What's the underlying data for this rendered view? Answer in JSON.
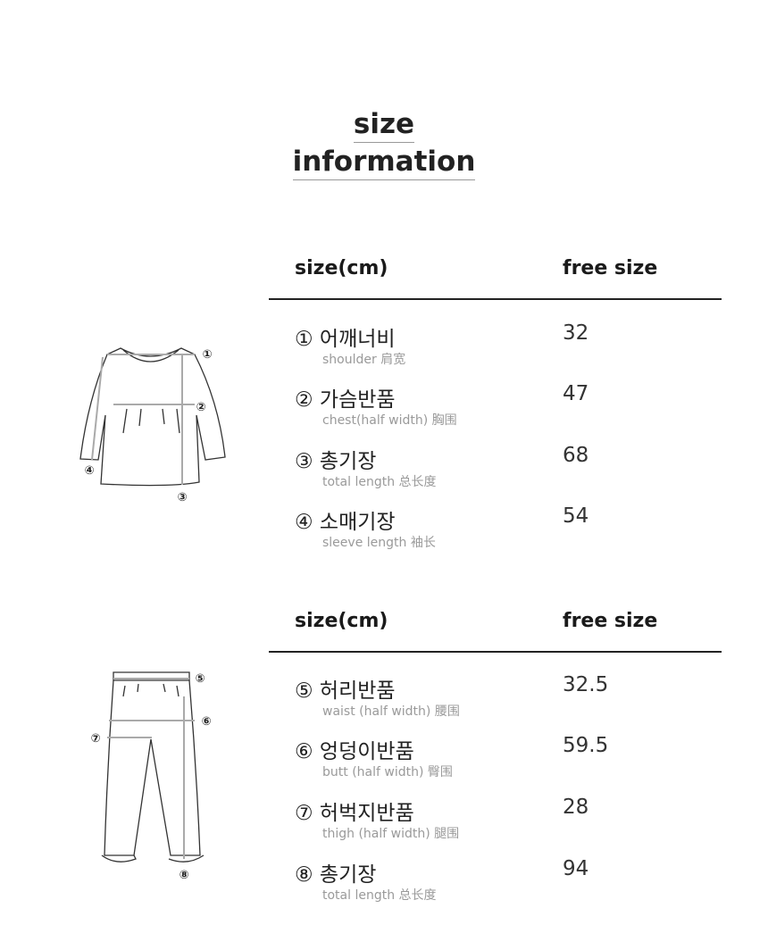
{
  "title": {
    "line1": "size",
    "line2": "information"
  },
  "tables": [
    {
      "header_label": "size(cm)",
      "header_size": "free size",
      "rows": [
        {
          "name": "① 어깨너비",
          "sub": "shoulder 肩宽",
          "value": "32"
        },
        {
          "name": "② 가슴반품",
          "sub": "chest(half width) 胸围",
          "value": "47"
        },
        {
          "name": "③ 총기장",
          "sub": "total length 总长度",
          "value": "68"
        },
        {
          "name": "④ 소매기장",
          "sub": "sleeve length 袖长",
          "value": "54"
        }
      ]
    },
    {
      "header_label": "size(cm)",
      "header_size": "free size",
      "rows": [
        {
          "name": "⑤ 허리반품",
          "sub": "waist (half width) 腰围",
          "value": "32.5"
        },
        {
          "name": "⑥ 엉덩이반품",
          "sub": "butt (half width) 臀围",
          "value": "59.5"
        },
        {
          "name": "⑦ 허벅지반품",
          "sub": "thigh (half width) 腿围",
          "value": "28"
        },
        {
          "name": "⑧ 총기장",
          "sub": "total length 总长度",
          "value": "94"
        }
      ]
    }
  ],
  "figures": {
    "top_markers": [
      "①",
      "②",
      "③",
      "④"
    ],
    "pants_markers": [
      "⑤",
      "⑥",
      "⑦",
      "⑧"
    ]
  }
}
